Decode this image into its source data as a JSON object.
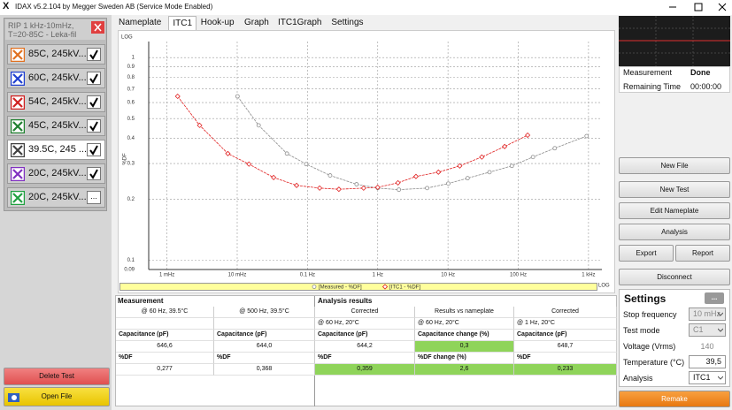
{
  "window": {
    "title": "IDAX v5.2.104 by Megger Sweden AB (Service Mode Enabled)"
  },
  "test_list": {
    "header": [
      "RIP 1 kHz-10mHz,",
      "T=20-85C - Leka-fil"
    ],
    "tests": [
      {
        "label": "85C, 245kV...",
        "color": "#e07020",
        "checked": true
      },
      {
        "label": "60C, 245kV...",
        "color": "#2040d0",
        "checked": true
      },
      {
        "label": "54C, 245kV...",
        "color": "#d02020",
        "checked": true
      },
      {
        "label": "45C, 245kV...",
        "color": "#208030",
        "checked": true
      },
      {
        "label": "39.5C, 245 ...",
        "color": "#404040",
        "checked": true,
        "selected": true
      },
      {
        "label": "20C, 245kV...",
        "color": "#8030c0",
        "checked": true
      },
      {
        "label": "20C, 245kV...",
        "color": "#20a040",
        "button": "..."
      }
    ]
  },
  "left_buttons": {
    "delete": "Delete Test",
    "open": "Open File"
  },
  "tabs": [
    {
      "label": "Nameplate"
    },
    {
      "label": "ITC1",
      "active": true
    },
    {
      "label": "Hook-up"
    },
    {
      "label": "Graph"
    },
    {
      "label": "ITC1Graph"
    },
    {
      "label": "Settings"
    }
  ],
  "chart_data": {
    "type": "line",
    "log_label": "LOG",
    "y_label": "%DF",
    "log_x": true,
    "log_y": true,
    "grid": true,
    "xlim": [
      0.00055,
      1550
    ],
    "ylim": [
      0.09,
      1.2
    ],
    "xticks": [
      {
        "value": 0.001,
        "label": "1 mHz"
      },
      {
        "value": 0.01,
        "label": "10 mHz"
      },
      {
        "value": 0.1,
        "label": "0.1 Hz"
      },
      {
        "value": 1,
        "label": "1 Hz"
      },
      {
        "value": 10,
        "label": "10 Hz"
      },
      {
        "value": 100,
        "label": "100 Hz"
      },
      {
        "value": 1000,
        "label": "1 kHz"
      }
    ],
    "yticks": [
      1,
      0.9,
      0.8,
      0.7,
      0.6,
      0.5,
      0.4,
      0.3,
      0.2,
      0.1,
      0.09
    ],
    "series": [
      {
        "name": "[Measured - %DF]",
        "color": "#8c8c8c",
        "marker": "circle",
        "x": [
          0.0101,
          0.0202,
          0.051,
          0.096,
          0.21,
          0.5,
          1,
          2,
          5.05,
          10.1,
          19,
          39,
          81,
          162,
          331,
          940
        ],
        "values": [
          0.644,
          0.463,
          0.336,
          0.298,
          0.262,
          0.237,
          0.227,
          0.223,
          0.227,
          0.239,
          0.254,
          0.272,
          0.292,
          0.323,
          0.357,
          0.41
        ]
      },
      {
        "name": "[ITC1 - %DF]",
        "color": "#e02020",
        "marker": "diamond",
        "x": [
          0.00142,
          0.00292,
          0.00736,
          0.0147,
          0.033,
          0.07,
          0.149,
          0.28,
          0.63,
          1,
          1.94,
          3.5,
          7.3,
          14.7,
          30.3,
          64,
          136
        ],
        "values": [
          0.644,
          0.463,
          0.336,
          0.298,
          0.256,
          0.234,
          0.227,
          0.224,
          0.227,
          0.229,
          0.241,
          0.259,
          0.272,
          0.292,
          0.323,
          0.364,
          0.414
        ]
      }
    ]
  },
  "table": {
    "sections": [
      "Measurement",
      "Analysis results"
    ],
    "rows": [
      [
        "@ 60 Hz, 39.5°C",
        "@ 500 Hz, 39.5°C",
        "Corrected",
        "Results vs nameplate",
        "Corrected"
      ],
      [
        null,
        null,
        "@ 60 Hz, 20°C",
        "@ 60 Hz, 20°C",
        "@ 1 Hz, 20°C"
      ],
      [
        "Capacitance (pF)",
        "Capacitance (pF)",
        "Capacitance (pF)",
        "Capacitance change (%)",
        "Capacitance (pF)"
      ],
      [
        "646,6",
        "644,0",
        "644,2",
        {
          "text": "0,3",
          "highlight": true
        },
        "648,7"
      ],
      [
        "%DF",
        "%DF",
        "%DF",
        "%DF change (%)",
        "%DF"
      ],
      [
        "0,277",
        "0,368",
        {
          "text": "0,359",
          "highlight": true
        },
        {
          "text": "2,6",
          "highlight": true
        },
        {
          "text": "0,233",
          "highlight": true
        }
      ]
    ]
  },
  "status": {
    "measurement_label": "Measurement",
    "measurement_value": "Done",
    "remaining_label": "Remaining Time",
    "remaining_value": "00:00:00"
  },
  "actions": {
    "new_file": "New File",
    "new_test": "New Test",
    "edit_nameplate": "Edit Nameplate",
    "analysis": "Analysis",
    "export": "Export",
    "report": "Report",
    "disconnect": "Disconnect",
    "remake": "Remake"
  },
  "settings": {
    "title": "Settings",
    "more": "...",
    "rows": [
      {
        "label": "Stop frequency",
        "value": "10 mHz",
        "kind": "dropdown",
        "enabled": false
      },
      {
        "label": "Test mode",
        "value": "C1",
        "kind": "dropdown",
        "enabled": false
      },
      {
        "label": "Voltage (Vrms)",
        "value": "140",
        "kind": "text",
        "enabled": false
      },
      {
        "label": "Temperature (°C)",
        "value": "39,5",
        "kind": "input",
        "enabled": true
      },
      {
        "label": "Analysis",
        "value": "ITC1",
        "kind": "dropdown",
        "enabled": true
      }
    ]
  }
}
